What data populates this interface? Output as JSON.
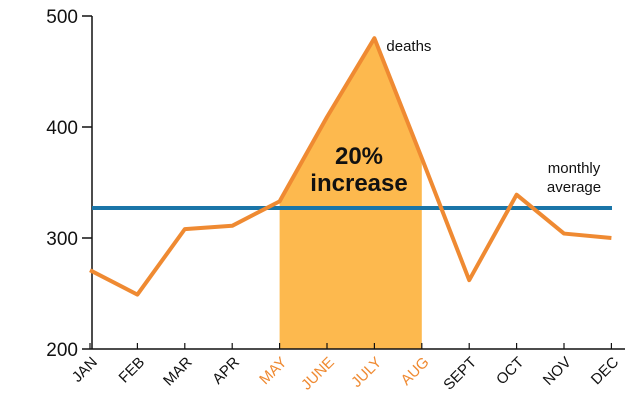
{
  "chart_data": {
    "type": "line",
    "categories": [
      "JAN",
      "FEB",
      "MAR",
      "APR",
      "MAY",
      "JUNE",
      "JULY",
      "AUG",
      "SEPT",
      "OCT",
      "NOV",
      "DEC"
    ],
    "series": [
      {
        "name": "deaths",
        "color": "#ef8a32",
        "values": [
          271,
          249,
          308,
          311,
          333,
          409,
          480,
          372,
          262,
          339,
          304,
          300
        ]
      }
    ],
    "average": {
      "label": [
        "monthly",
        "average"
      ],
      "value": 327,
      "color": "#1a75a8"
    },
    "highlight": {
      "from": "MAY",
      "to": "AUG",
      "color": "#fdb94e",
      "label": [
        "20%",
        "increase"
      ]
    },
    "ylim": [
      200,
      500
    ],
    "yticks": [
      200,
      300,
      400,
      500
    ]
  }
}
